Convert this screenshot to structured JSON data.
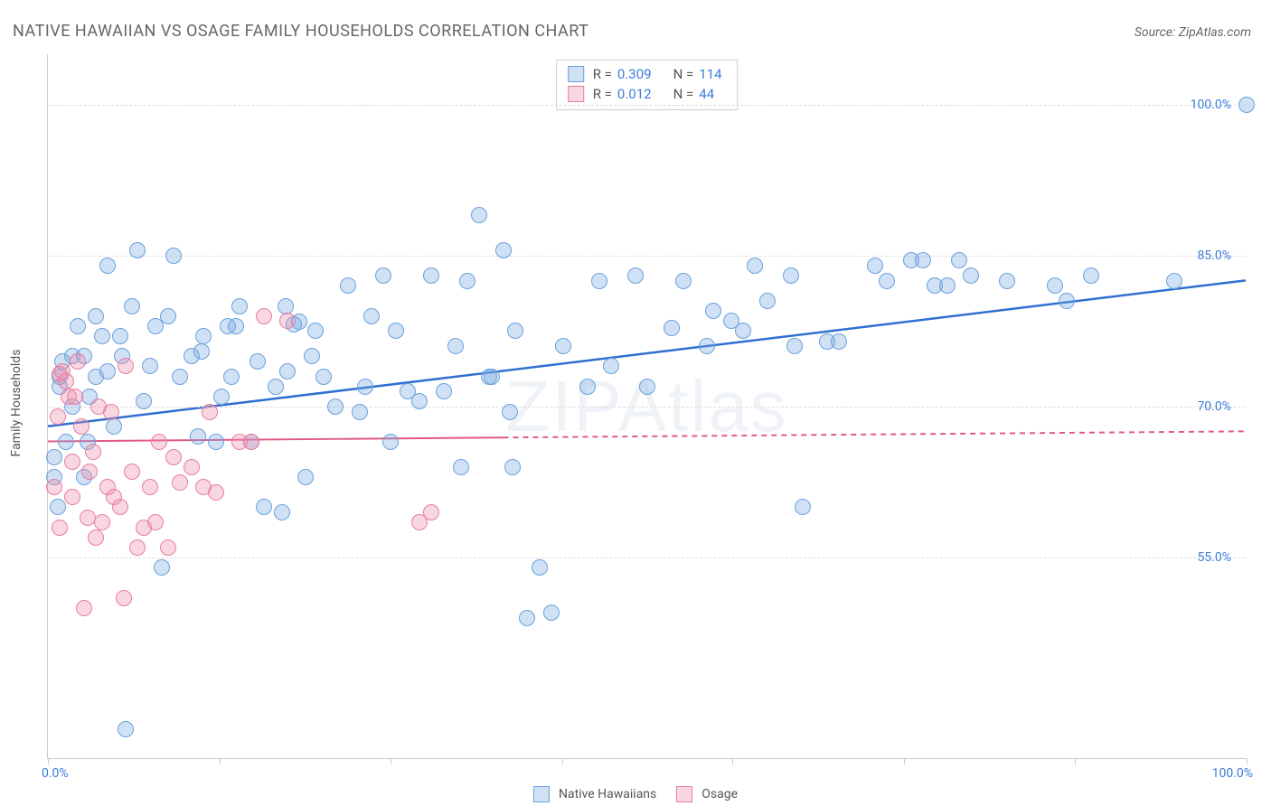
{
  "title": "NATIVE HAWAIIAN VS OSAGE FAMILY HOUSEHOLDS CORRELATION CHART",
  "source": "Source: ZipAtlas.com",
  "watermark": "ZIPAtlas",
  "chart": {
    "type": "scatter",
    "ylabel": "Family Households",
    "xlim": [
      0,
      100
    ],
    "ylim": [
      35,
      105
    ],
    "background_color": "#ffffff",
    "grid_color": "#dddddd",
    "axis_color": "#cccccc",
    "tick_label_color": "#3b7dd8",
    "tick_fontsize": 14,
    "y_ticks": [
      55.0,
      70.0,
      85.0,
      100.0
    ],
    "y_tick_labels": [
      "55.0%",
      "70.0%",
      "85.0%",
      "100.0%"
    ],
    "x_ticks": [
      0,
      14.3,
      28.6,
      42.9,
      57.1,
      71.4,
      85.7,
      100
    ],
    "x_min_label": "0.0%",
    "x_max_label": "100.0%",
    "marker_radius": 9,
    "marker_border_width": 1.5,
    "series": [
      {
        "name": "Native Hawaiians",
        "fill": "rgba(120,170,226,0.35)",
        "stroke": "#6aa1dd",
        "trend_color": "#2f6fd0",
        "trend_width": 2.5,
        "trend_dash_after_x": null,
        "R": "0.309",
        "N": "114",
        "trend_y_at_x0": 68.0,
        "trend_y_at_x100": 82.5,
        "points": [
          [
            0.5,
            63
          ],
          [
            0.5,
            65
          ],
          [
            0.8,
            60
          ],
          [
            1,
            72
          ],
          [
            1,
            73
          ],
          [
            1.2,
            74.5
          ],
          [
            1.5,
            66.5
          ],
          [
            2,
            75
          ],
          [
            2,
            70
          ],
          [
            2.5,
            78
          ],
          [
            3,
            75
          ],
          [
            3,
            63
          ],
          [
            3.3,
            66.5
          ],
          [
            3.5,
            71
          ],
          [
            4,
            79
          ],
          [
            4,
            73
          ],
          [
            4.5,
            77
          ],
          [
            5,
            84
          ],
          [
            5,
            73.5
          ],
          [
            5.5,
            68
          ],
          [
            6,
            77
          ],
          [
            6.2,
            75
          ],
          [
            6.5,
            38
          ],
          [
            7,
            80
          ],
          [
            7.5,
            85.5
          ],
          [
            8,
            70.5
          ],
          [
            8.5,
            74
          ],
          [
            9,
            78
          ],
          [
            9.5,
            54
          ],
          [
            10,
            79
          ],
          [
            10.5,
            85
          ],
          [
            11,
            73
          ],
          [
            12,
            75
          ],
          [
            12.5,
            67
          ],
          [
            12.8,
            75.5
          ],
          [
            13,
            77
          ],
          [
            14,
            66.5
          ],
          [
            14.5,
            71
          ],
          [
            15,
            78
          ],
          [
            15.3,
            73
          ],
          [
            15.7,
            78
          ],
          [
            16,
            80
          ],
          [
            17,
            66.5
          ],
          [
            17.5,
            74.5
          ],
          [
            18,
            60
          ],
          [
            19,
            72
          ],
          [
            19.5,
            59.5
          ],
          [
            19.8,
            80
          ],
          [
            20,
            73.5
          ],
          [
            20.5,
            78.2
          ],
          [
            21,
            78.4
          ],
          [
            21.5,
            63
          ],
          [
            22,
            75
          ],
          [
            22.3,
            77.5
          ],
          [
            23,
            73
          ],
          [
            24,
            70
          ],
          [
            25,
            82
          ],
          [
            26,
            69.5
          ],
          [
            26.5,
            72
          ],
          [
            27,
            79
          ],
          [
            28,
            83
          ],
          [
            28.6,
            66.5
          ],
          [
            29,
            77.5
          ],
          [
            30,
            71.5
          ],
          [
            31,
            70.5
          ],
          [
            32,
            83
          ],
          [
            33,
            71.5
          ],
          [
            34,
            76
          ],
          [
            34.5,
            64
          ],
          [
            35,
            82.5
          ],
          [
            36,
            89
          ],
          [
            36.8,
            73
          ],
          [
            37,
            73
          ],
          [
            38,
            85.5
          ],
          [
            38.5,
            69.5
          ],
          [
            38.8,
            64
          ],
          [
            39,
            77.5
          ],
          [
            40,
            49
          ],
          [
            41,
            54
          ],
          [
            42,
            49.5
          ],
          [
            43,
            76
          ],
          [
            45,
            72
          ],
          [
            46,
            82.5
          ],
          [
            47,
            74
          ],
          [
            49,
            83
          ],
          [
            50,
            72
          ],
          [
            52,
            77.8
          ],
          [
            53,
            82.5
          ],
          [
            55,
            76
          ],
          [
            55.5,
            79.5
          ],
          [
            57,
            78.5
          ],
          [
            58,
            77.5
          ],
          [
            59,
            84
          ],
          [
            60,
            80.5
          ],
          [
            62,
            83
          ],
          [
            62.3,
            76
          ],
          [
            63,
            60
          ],
          [
            65,
            76.5
          ],
          [
            66,
            76.5
          ],
          [
            69,
            84
          ],
          [
            70,
            82.5
          ],
          [
            72,
            84.5
          ],
          [
            73,
            84.5
          ],
          [
            74,
            82
          ],
          [
            75,
            82
          ],
          [
            76,
            84.5
          ],
          [
            77,
            83
          ],
          [
            80,
            82.5
          ],
          [
            84,
            82
          ],
          [
            85,
            80.5
          ],
          [
            87,
            83
          ],
          [
            94,
            82.5
          ],
          [
            100,
            100
          ]
        ]
      },
      {
        "name": "Osage",
        "fill": "rgba(238,140,170,0.35)",
        "stroke": "#e77da0",
        "trend_color": "#e05a87",
        "trend_width": 2,
        "trend_dash_after_x": 38,
        "R": "0.012",
        "N": "44",
        "trend_y_at_x0": 66.5,
        "trend_y_at_x100": 67.5,
        "points": [
          [
            0.5,
            62
          ],
          [
            0.8,
            69
          ],
          [
            1,
            58
          ],
          [
            1,
            73.2
          ],
          [
            1.2,
            73.5
          ],
          [
            1.5,
            72.5
          ],
          [
            1.7,
            71
          ],
          [
            2,
            64.5
          ],
          [
            2,
            61
          ],
          [
            2.3,
            71
          ],
          [
            2.5,
            74.5
          ],
          [
            2.8,
            68
          ],
          [
            3,
            50
          ],
          [
            3.3,
            59
          ],
          [
            3.5,
            63.5
          ],
          [
            3.8,
            65.5
          ],
          [
            4,
            57
          ],
          [
            4.2,
            70
          ],
          [
            4.5,
            58.5
          ],
          [
            5,
            62
          ],
          [
            5.3,
            69.5
          ],
          [
            5.5,
            61
          ],
          [
            6,
            60
          ],
          [
            6.3,
            51
          ],
          [
            6.5,
            74
          ],
          [
            7,
            63.5
          ],
          [
            7.5,
            56
          ],
          [
            8,
            58
          ],
          [
            8.5,
            62
          ],
          [
            9,
            58.5
          ],
          [
            9.3,
            66.5
          ],
          [
            10,
            56
          ],
          [
            10.5,
            65
          ],
          [
            11,
            62.5
          ],
          [
            12,
            64
          ],
          [
            13,
            62
          ],
          [
            13.5,
            69.5
          ],
          [
            14,
            61.5
          ],
          [
            16,
            66.5
          ],
          [
            17,
            66.5
          ],
          [
            18,
            79
          ],
          [
            20,
            78.5
          ],
          [
            31,
            58.5
          ],
          [
            32,
            59.5
          ]
        ]
      }
    ]
  },
  "r_legend": {
    "R_label": "R =",
    "N_label": "N ="
  },
  "bottom_legend": {
    "items": [
      "Native Hawaiians",
      "Osage"
    ]
  }
}
